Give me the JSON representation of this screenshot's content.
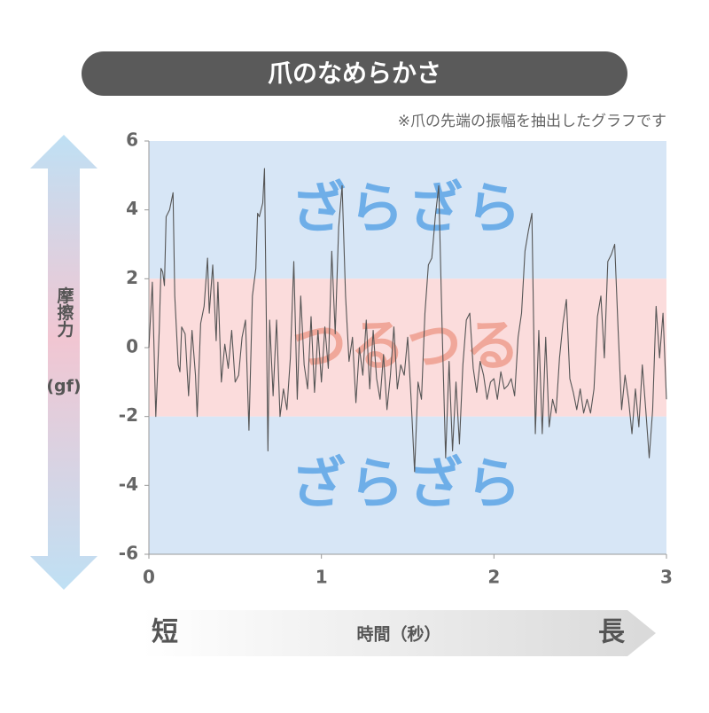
{
  "title": "爪のなめらかさ",
  "note": "※爪の先端の振幅を抽出したグラフです",
  "y_label": "摩擦力",
  "y_unit": "(gf)",
  "x_label": "時間（秒）",
  "x_start_label": "短",
  "x_end_label": "長",
  "chart_data": {
    "type": "line",
    "color": "#555555",
    "xlim": [
      0,
      3
    ],
    "xticks": [
      0,
      1,
      2,
      3
    ],
    "ylim": [
      -6,
      6
    ],
    "yticks": [
      -6,
      -4,
      -2,
      0,
      2,
      4,
      6
    ],
    "bands": [
      {
        "from": 2,
        "to": 6,
        "color": "#d7e6f6",
        "label": "ざらざら",
        "label_color": "#6eaee8"
      },
      {
        "from": -2,
        "to": 2,
        "color": "#fbdcdc",
        "label": "つるつる",
        "label_color": "#f0a79a"
      },
      {
        "from": -6,
        "to": -2,
        "color": "#d7e6f6",
        "label": "ざらざら",
        "label_color": "#6eaee8"
      }
    ],
    "x": [
      0,
      0.02,
      0.04,
      0.06,
      0.07,
      0.08,
      0.09,
      0.1,
      0.12,
      0.14,
      0.15,
      0.17,
      0.18,
      0.19,
      0.21,
      0.23,
      0.25,
      0.27,
      0.28,
      0.3,
      0.32,
      0.34,
      0.35,
      0.37,
      0.39,
      0.4,
      0.42,
      0.44,
      0.46,
      0.48,
      0.5,
      0.52,
      0.54,
      0.56,
      0.58,
      0.6,
      0.62,
      0.63,
      0.64,
      0.66,
      0.67,
      0.69,
      0.7,
      0.72,
      0.74,
      0.76,
      0.78,
      0.8,
      0.82,
      0.84,
      0.86,
      0.88,
      0.9,
      0.92,
      0.94,
      0.96,
      0.98,
      1.0,
      1.02,
      1.04,
      1.06,
      1.08,
      1.1,
      1.12,
      1.14,
      1.16,
      1.18,
      1.2,
      1.22,
      1.24,
      1.26,
      1.28,
      1.3,
      1.32,
      1.34,
      1.36,
      1.38,
      1.4,
      1.42,
      1.44,
      1.46,
      1.48,
      1.5,
      1.52,
      1.54,
      1.56,
      1.58,
      1.6,
      1.62,
      1.64,
      1.66,
      1.68,
      1.7,
      1.72,
      1.74,
      1.76,
      1.78,
      1.8,
      1.82,
      1.84,
      1.86,
      1.88,
      1.9,
      1.92,
      1.94,
      1.96,
      1.98,
      2.0,
      2.02,
      2.04,
      2.06,
      2.08,
      2.1,
      2.12,
      2.14,
      2.16,
      2.18,
      2.2,
      2.22,
      2.24,
      2.26,
      2.28,
      2.3,
      2.32,
      2.34,
      2.36,
      2.38,
      2.4,
      2.42,
      2.44,
      2.46,
      2.48,
      2.5,
      2.52,
      2.54,
      2.56,
      2.58,
      2.6,
      2.62,
      2.64,
      2.66,
      2.68,
      2.7,
      2.72,
      2.74,
      2.76,
      2.78,
      2.8,
      2.82,
      2.84,
      2.86,
      2.88,
      2.9,
      2.92,
      2.94,
      2.96,
      2.98,
      3.0
    ],
    "values": [
      0,
      1.9,
      -2.0,
      0.5,
      2.3,
      2.2,
      1.8,
      3.8,
      4.0,
      4.5,
      1.5,
      -0.5,
      -0.7,
      0.6,
      0.4,
      -1.4,
      0.5,
      -0.8,
      -2.0,
      0.7,
      1.2,
      2.6,
      1.0,
      2.4,
      0.2,
      1.9,
      -1.0,
      0.1,
      -0.6,
      0.5,
      -1.0,
      -0.8,
      0.3,
      0.8,
      -2.4,
      1.5,
      2.3,
      3.9,
      3.8,
      4.2,
      5.2,
      -3.0,
      0.8,
      -1.4,
      0.8,
      -2.0,
      -1.2,
      -1.8,
      -0.3,
      2.5,
      -1.5,
      1.5,
      -0.5,
      -1.2,
      0.9,
      -1.3,
      0.5,
      -1.0,
      0.6,
      -0.6,
      2.8,
      0.4,
      3.5,
      4.7,
      1.5,
      -0.4,
      0.3,
      -1.6,
      0.0,
      -0.8,
      0.8,
      -1.2,
      0.5,
      -0.9,
      -1.5,
      -0.2,
      -1.8,
      -0.8,
      0.6,
      -1.2,
      -0.5,
      -0.8,
      0.3,
      -1.5,
      -3.6,
      -1.0,
      -1.5,
      1.0,
      2.4,
      2.6,
      3.8,
      4.7,
      0.5,
      -3.2,
      -0.4,
      -3.0,
      -1.0,
      -2.8,
      -0.5,
      0.8,
      1.0,
      -0.6,
      -1.3,
      -0.4,
      -0.8,
      -1.5,
      -1.0,
      -0.9,
      -1.5,
      -0.7,
      -1.2,
      -1.1,
      -0.9,
      -1.4,
      0.3,
      1.0,
      2.8,
      3.4,
      3.9,
      -2.5,
      0.5,
      -2.5,
      0.3,
      -2.3,
      -1.5,
      -1.9,
      -0.3,
      0.7,
      1.4,
      -0.9,
      -1.3,
      -1.8,
      -1.2,
      -1.9,
      -1.5,
      -1.9,
      -1.2,
      0.9,
      1.5,
      -0.3,
      2.5,
      2.7,
      3.0,
      0.5,
      -1.8,
      -0.8,
      -1.5,
      -2.5,
      -1.2,
      -2.3,
      -0.5,
      -1.8,
      -3.2,
      -1.8,
      1.2,
      -0.3,
      1.0,
      -1.5
    ]
  }
}
